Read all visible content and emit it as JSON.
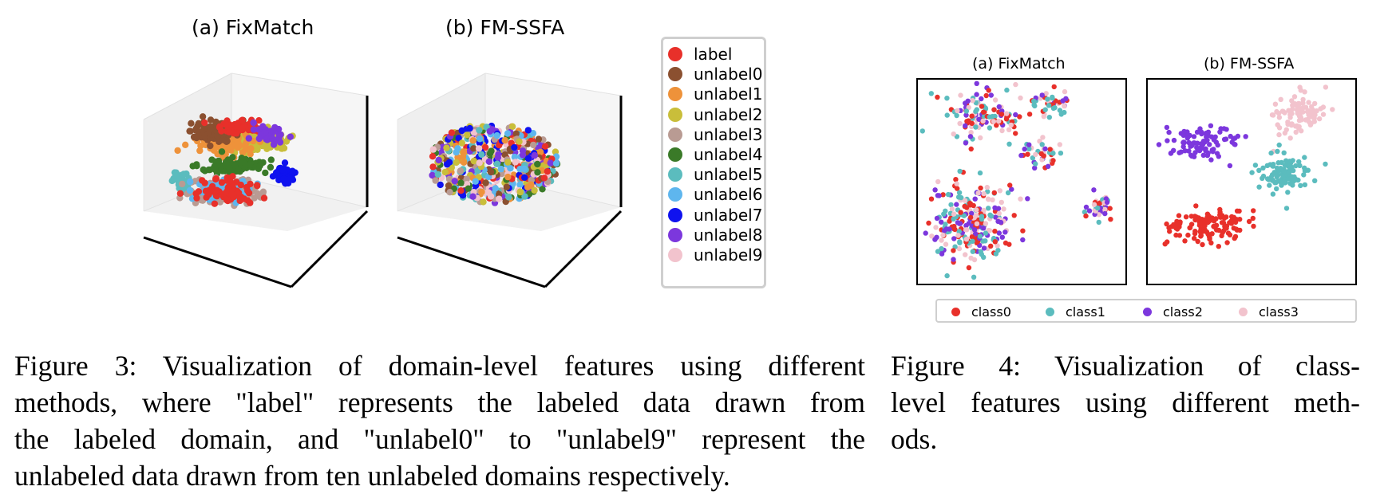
{
  "figure3": {
    "panel_a_title": "(a) FixMatch",
    "panel_b_title": "(b) FM-SSFA",
    "legend": [
      {
        "label": "label",
        "color": "#e8302a"
      },
      {
        "label": "unlabel0",
        "color": "#8b5030"
      },
      {
        "label": "unlabel1",
        "color": "#ee923a"
      },
      {
        "label": "unlabel2",
        "color": "#c9be3a"
      },
      {
        "label": "unlabel3",
        "color": "#b99b93"
      },
      {
        "label": "unlabel4",
        "color": "#3a7a28"
      },
      {
        "label": "unlabel5",
        "color": "#5bbcbe"
      },
      {
        "label": "unlabel6",
        "color": "#5eb6ee"
      },
      {
        "label": "unlabel7",
        "color": "#0f12ef"
      },
      {
        "label": "unlabel8",
        "color": "#7c37dd"
      },
      {
        "label": "unlabel9",
        "color": "#f2c3cd"
      }
    ],
    "caption_lines": [
      "Figure 3: Visualization of domain-level features using different",
      "methods, where \"label\" represents the labeled data drawn from",
      "the labeled domain, and \"unlabel0\" to \"unlabel9\" represent the",
      "unlabeled data drawn from ten unlabeled domains respectively."
    ]
  },
  "figure4": {
    "panel_a_title": "(a) FixMatch",
    "panel_b_title": "(b) FM-SSFA",
    "legend": [
      {
        "label": "class0",
        "color": "#e8302a"
      },
      {
        "label": "class1",
        "color": "#5bbcbe"
      },
      {
        "label": "class2",
        "color": "#7c37dd"
      },
      {
        "label": "class3",
        "color": "#f2c3cd"
      }
    ],
    "caption_lines": [
      "Figure 4:  Visualization of class-",
      "level features using different meth-",
      "ods."
    ]
  }
}
